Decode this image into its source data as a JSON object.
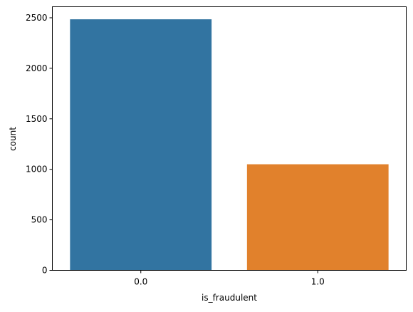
{
  "chart_data": {
    "type": "bar",
    "categories": [
      "0.0",
      "1.0"
    ],
    "values": [
      2485,
      1050
    ],
    "colors": [
      "#3274a1",
      "#e1812c"
    ],
    "xlabel": "is_fraudulent",
    "ylabel": "count",
    "ylim": [
      0,
      2609
    ],
    "yticks": [
      0,
      500,
      1000,
      1500,
      2000,
      2500
    ],
    "grid": false,
    "legend": "none"
  }
}
